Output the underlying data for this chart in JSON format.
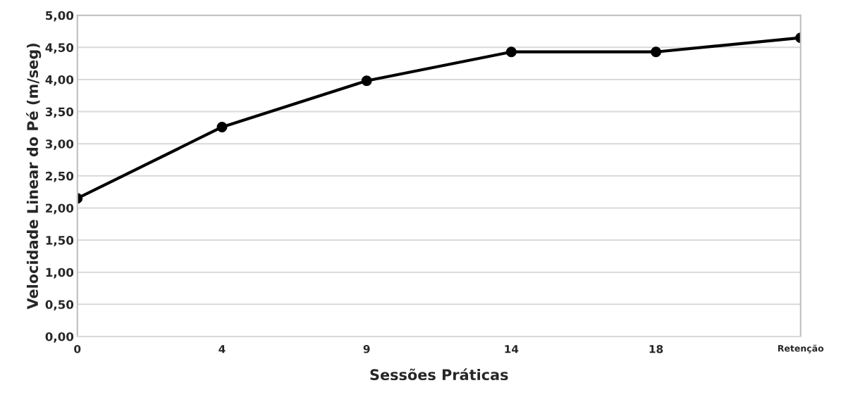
{
  "chart_data": {
    "type": "line",
    "xlabel": "Sessões Práticas",
    "ylabel": "Velocidade Linear do Pé (m/seg)",
    "categories": [
      "0",
      "4",
      "9",
      "14",
      "18",
      "Retenção"
    ],
    "series": [
      {
        "color": "#000000",
        "values": [
          2.15,
          3.26,
          3.98,
          4.43,
          4.43,
          4.65
        ]
      }
    ],
    "ylim": [
      0,
      5
    ],
    "yticks": [
      {
        "value": 0,
        "label": "0,00"
      },
      {
        "value": 0.5,
        "label": "0,50"
      },
      {
        "value": 1,
        "label": "1,00"
      },
      {
        "value": 1.5,
        "label": "1,50"
      },
      {
        "value": 2,
        "label": "2,00"
      },
      {
        "value": 2.5,
        "label": "2,50"
      },
      {
        "value": 3,
        "label": "3,00"
      },
      {
        "value": 3.5,
        "label": "3,50"
      },
      {
        "value": 4,
        "label": "4,00"
      },
      {
        "value": 4.5,
        "label": "4,50"
      },
      {
        "value": 5,
        "label": "5,00"
      }
    ],
    "grid": "y",
    "marker": "circle",
    "line_style": "solid"
  }
}
